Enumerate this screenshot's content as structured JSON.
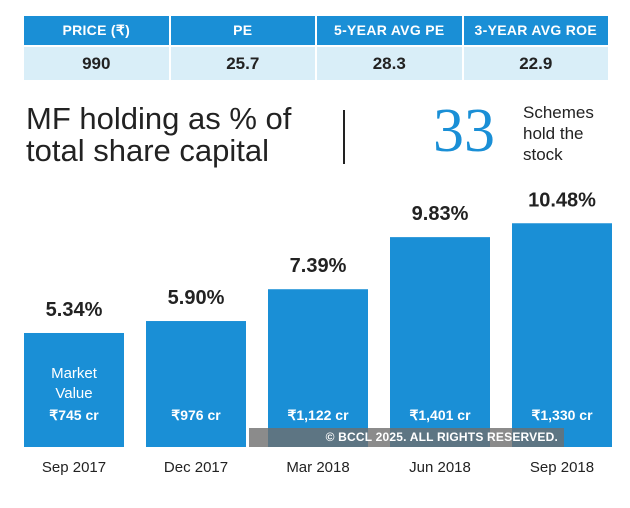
{
  "stats": {
    "headers": [
      "PRICE (₹)",
      "PE",
      "5-YEAR AVG PE",
      "3-YEAR AVG ROE"
    ],
    "values": [
      "990",
      "25.7",
      "28.3",
      "22.9"
    ]
  },
  "heading": {
    "line1": "MF holding as % of",
    "line2": "total share capital"
  },
  "schemes": {
    "number": "33",
    "line1": "Schemes",
    "line2": "hold the",
    "line3": "stock"
  },
  "chart_data": {
    "type": "bar",
    "categories": [
      "Sep 2017",
      "Dec 2017",
      "Mar 2018",
      "Jun 2018",
      "Sep 2018"
    ],
    "values": [
      5.34,
      5.9,
      7.39,
      9.83,
      10.48
    ],
    "value_labels": [
      "5.34%",
      "5.90%",
      "7.39%",
      "9.83%",
      "10.48%"
    ],
    "market_value_title": [
      "Market",
      "Value"
    ],
    "market_values": [
      "₹745 cr",
      "₹976 cr",
      "₹1,122 cr",
      "₹1,401 cr",
      "₹1,330 cr"
    ],
    "unit": "%",
    "bar_color": "#1a8fd6"
  },
  "watermark": "© BCCL 2025. ALL RIGHTS RESERVED."
}
